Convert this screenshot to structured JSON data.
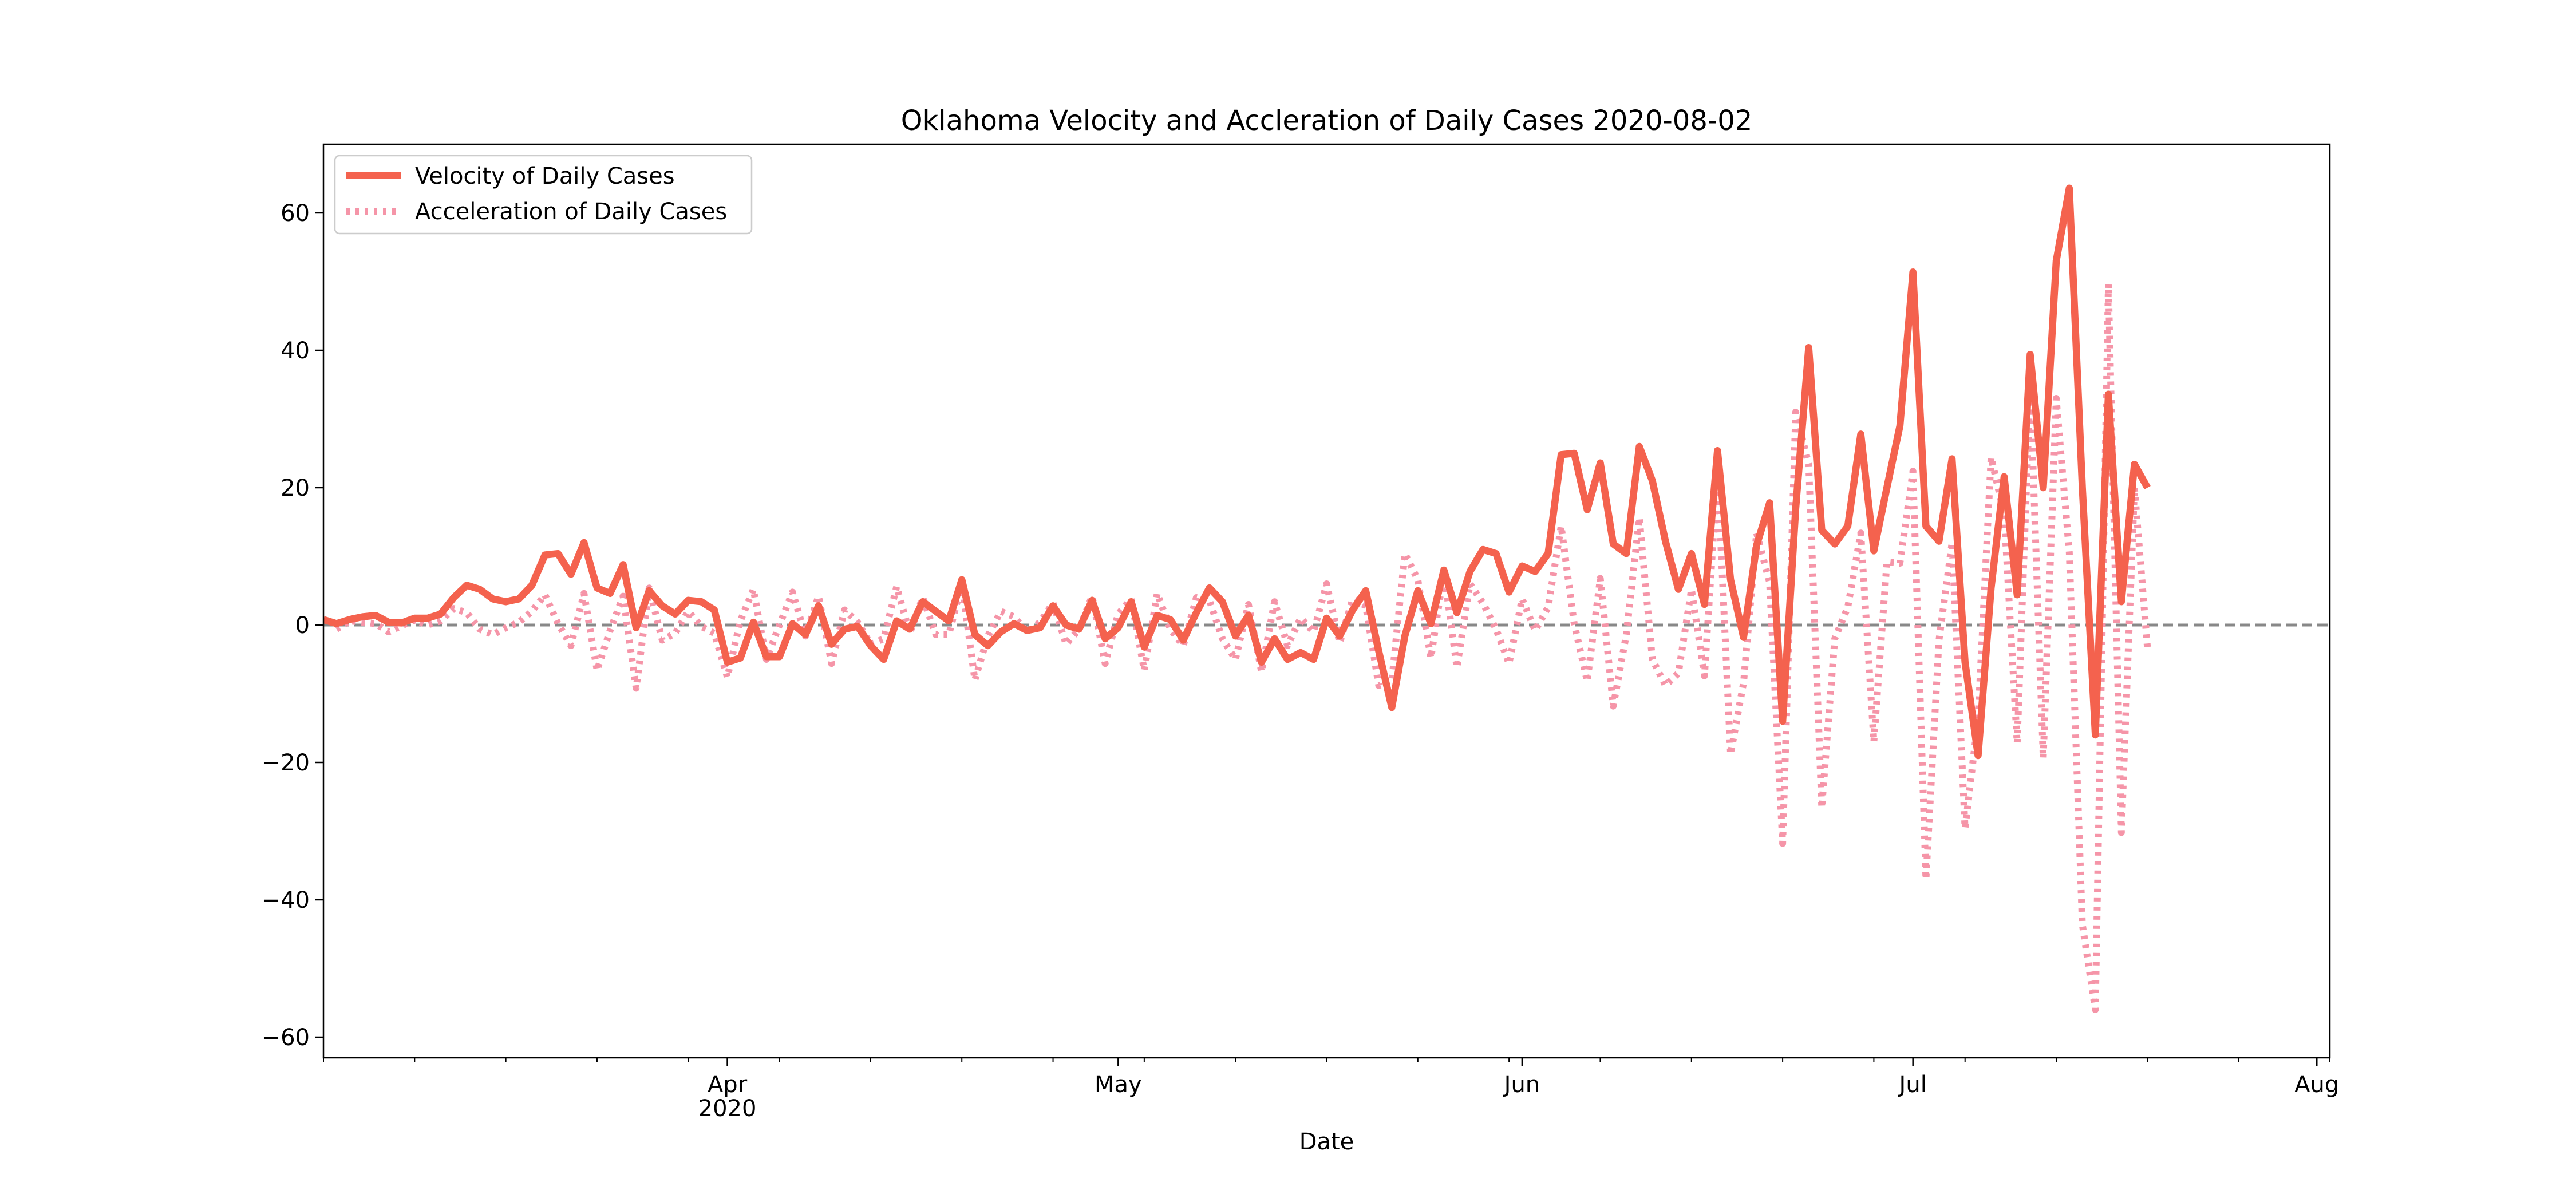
{
  "chart_data": {
    "type": "line",
    "title": "Oklahoma Velocity and Accleration of Daily Cases 2020-08-02",
    "xlabel": "Date",
    "ylabel": "",
    "x_start": "2020-03-01",
    "xlim": [
      "2020-03-01",
      "2020-08-02"
    ],
    "ylim": [
      -63,
      70
    ],
    "yticks": [
      -60,
      -40,
      -20,
      0,
      20,
      40,
      60
    ],
    "ytick_labels": [
      "−60",
      "−40",
      "−20",
      "0",
      "20",
      "40",
      "60"
    ],
    "xticks": [
      {
        "date": "2020-04-01",
        "label": "Apr",
        "label2": "2020"
      },
      {
        "date": "2020-05-01",
        "label": "May",
        "label2": ""
      },
      {
        "date": "2020-06-01",
        "label": "Jun",
        "label2": ""
      },
      {
        "date": "2020-07-01",
        "label": "Jul",
        "label2": ""
      },
      {
        "date": "2020-08-01",
        "label": "Aug",
        "label2": ""
      }
    ],
    "grid": false,
    "legend_position": "top-left",
    "reference_line": {
      "y": 0,
      "color": "#888888",
      "style": "dashed"
    },
    "series": [
      {
        "name": "Velocity of Daily Cases",
        "color": "#f4624e",
        "style": "solid",
        "values": [
          0.8,
          0.2,
          0.8,
          1.2,
          1.4,
          0.4,
          0.3,
          1.0,
          1.0,
          1.6,
          4.0,
          5.8,
          5.2,
          3.8,
          3.4,
          3.8,
          5.8,
          10.2,
          10.4,
          7.4,
          12.0,
          5.4,
          4.6,
          8.8,
          -0.4,
          5.0,
          2.8,
          1.6,
          3.6,
          3.4,
          2.2,
          -5.4,
          -4.8,
          0.4,
          -4.6,
          -4.6,
          0.2,
          -1.4,
          2.8,
          -2.8,
          -0.6,
          -0.2,
          -3.0,
          -5.0,
          0.6,
          -0.6,
          3.4,
          2.0,
          0.6,
          6.6,
          -1.4,
          -3.0,
          -1.0,
          0.2,
          -0.8,
          -0.4,
          2.8,
          0.0,
          -0.6,
          3.6,
          -2.0,
          -0.4,
          3.4,
          -3.2,
          1.4,
          0.8,
          -2.2,
          1.8,
          5.4,
          3.4,
          -1.6,
          1.4,
          -5.4,
          -2.0,
          -5.0,
          -4.0,
          -5.0,
          1.0,
          -1.6,
          2.2,
          5.0,
          -3.8,
          -12.0,
          -1.6,
          5.0,
          0.2,
          8.0,
          1.8,
          7.8,
          11.0,
          10.4,
          4.8,
          8.6,
          7.8,
          10.4,
          24.8,
          25.0,
          16.8,
          23.6,
          11.8,
          10.4,
          26.0,
          21.0,
          12.2,
          5.2,
          10.4,
          3.0,
          25.4,
          6.6,
          -1.8,
          11.6,
          17.8,
          -14.0,
          17.0,
          40.4,
          13.8,
          11.8,
          14.4,
          27.8,
          10.8,
          20.0,
          29.0,
          51.4,
          14.4,
          12.2,
          24.2,
          -5.4,
          -19.0,
          5.4,
          21.6,
          4.4,
          39.4,
          20.0,
          53.0,
          63.6,
          20.0,
          -16.0,
          33.6,
          3.4,
          23.4,
          20.0
        ]
      },
      {
        "name": "Acceleration of Daily Cases",
        "color": "#f595a8",
        "style": "dotted",
        "values": [
          null,
          -0.6,
          0.6,
          0.4,
          0.2,
          -1.0,
          -0.1,
          0.7,
          0.0,
          0.6,
          2.4,
          1.8,
          -0.6,
          -1.4,
          -0.4,
          0.4,
          2.0,
          4.4,
          0.2,
          -3.0,
          4.6,
          -6.6,
          -0.8,
          4.2,
          -9.2,
          5.4,
          -2.2,
          -1.2,
          2.0,
          -0.2,
          -1.2,
          -7.6,
          0.6,
          5.2,
          -5.0,
          0.0,
          4.8,
          -1.6,
          4.2,
          -5.6,
          2.2,
          0.4,
          -2.8,
          -2.0,
          5.6,
          -1.2,
          4.0,
          -1.4,
          -1.4,
          6.0,
          -8.0,
          -1.6,
          2.0,
          1.2,
          -1.0,
          0.4,
          3.2,
          -2.8,
          -0.6,
          4.2,
          -5.6,
          1.6,
          3.8,
          -6.6,
          4.6,
          -0.6,
          -3.0,
          4.0,
          3.6,
          -2.0,
          -5.0,
          3.0,
          -6.8,
          3.4,
          -3.0,
          1.0,
          -1.0,
          6.0,
          -2.6,
          3.8,
          2.8,
          -8.8,
          -8.2,
          10.4,
          6.6,
          -4.8,
          7.8,
          -6.2,
          6.0,
          3.2,
          -0.6,
          -5.6,
          3.8,
          -0.8,
          2.6,
          14.4,
          0.2,
          -8.2,
          6.8,
          -11.8,
          -1.4,
          15.6,
          -5.0,
          -8.8,
          -7.0,
          5.2,
          -7.4,
          22.4,
          -18.8,
          -8.4,
          13.4,
          6.2,
          -31.8,
          31.0,
          23.4,
          -26.6,
          -2.0,
          2.6,
          13.4,
          -17.0,
          9.2,
          9.0,
          22.4,
          -37.0,
          -2.2,
          12.0,
          -29.6,
          -13.6,
          24.4,
          16.2,
          -17.2,
          35.0,
          -19.4,
          33.0,
          10.6,
          -43.6,
          -56.0,
          49.6,
          -30.2,
          20.0,
          -3.4
        ]
      }
    ]
  }
}
